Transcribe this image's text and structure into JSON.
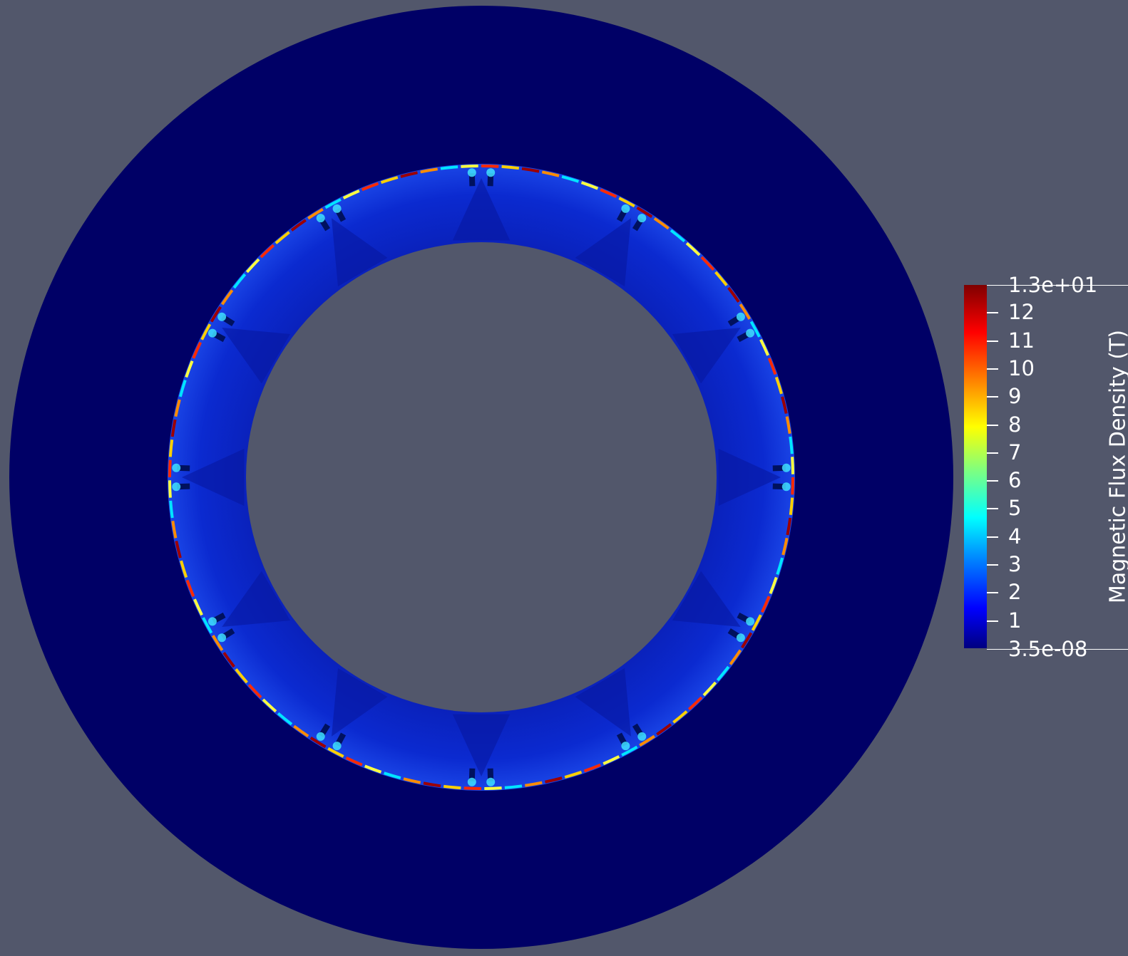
{
  "colorbar": {
    "title": "Magnetic Flux Density (T)",
    "max_label": "1.3e+01",
    "min_label": "3.5e-08",
    "range_min": 3.5e-08,
    "range_max": 13,
    "ticks": [
      {
        "value": 12,
        "label": "12"
      },
      {
        "value": 11,
        "label": "11"
      },
      {
        "value": 10,
        "label": "10"
      },
      {
        "value": 9,
        "label": "9"
      },
      {
        "value": 8,
        "label": "8"
      },
      {
        "value": 7,
        "label": "7"
      },
      {
        "value": 6,
        "label": "6"
      },
      {
        "value": 5,
        "label": "5"
      },
      {
        "value": 4,
        "label": "4"
      },
      {
        "value": 3,
        "label": "3"
      },
      {
        "value": 2,
        "label": "2"
      },
      {
        "value": 1,
        "label": "1"
      }
    ]
  },
  "colors": {
    "background": "#52576b",
    "outer_ring": "#000066",
    "inner_ring": "#0a23c8",
    "text": "#ffffff"
  }
}
